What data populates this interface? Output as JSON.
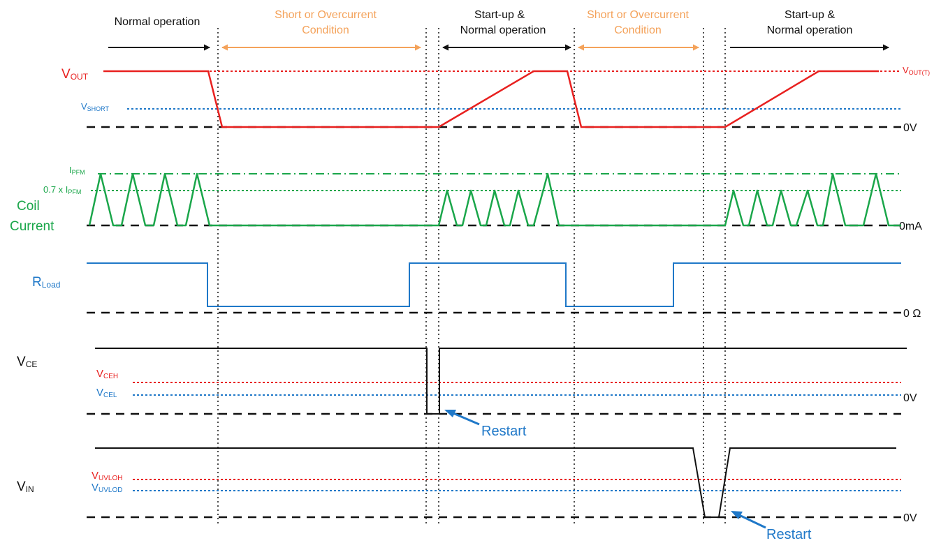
{
  "colors": {
    "red": "#e8201f",
    "blue": "#1f78c8",
    "green": "#1aa64a",
    "orange": "#f4a25a",
    "black": "#111111"
  },
  "phases": {
    "normal_operation": "Normal operation",
    "short_condition_line1": "Short  or Overcurrent",
    "short_condition_line2": "Condition",
    "startup_line1": "Start-up &",
    "startup_line2": "Normal operation"
  },
  "signals": {
    "vout": {
      "main": "V",
      "sub": "OUT"
    },
    "coil_line1": "Coil",
    "coil_line2": "Current",
    "rload": {
      "main": "R",
      "sub": "Load"
    },
    "vce": {
      "main": "V",
      "sub": "CE"
    },
    "vin": {
      "main": "V",
      "sub": "IN"
    }
  },
  "thresholds": {
    "vout_t": {
      "main": "V",
      "sub": "OUT(T)"
    },
    "vshort": {
      "main": "V",
      "sub": "SHORT"
    },
    "ipfm": {
      "main": "I",
      "sub": "PFM"
    },
    "ipfm_07": {
      "main": "0.7 x I",
      "sub": "PFM"
    },
    "vceh": {
      "main": "V",
      "sub": "CEH"
    },
    "vcel": {
      "main": "V",
      "sub": "CEL"
    },
    "vuvloh": {
      "main": "V",
      "sub": "UVLOH"
    },
    "vuvlod": {
      "main": "V",
      "sub": "UVLOD"
    }
  },
  "zero_labels": {
    "vout": "0V",
    "coil": "0mA",
    "rload": "0 Ω",
    "vce": "0V",
    "vin": "0V"
  },
  "restart_label": "Restart"
}
